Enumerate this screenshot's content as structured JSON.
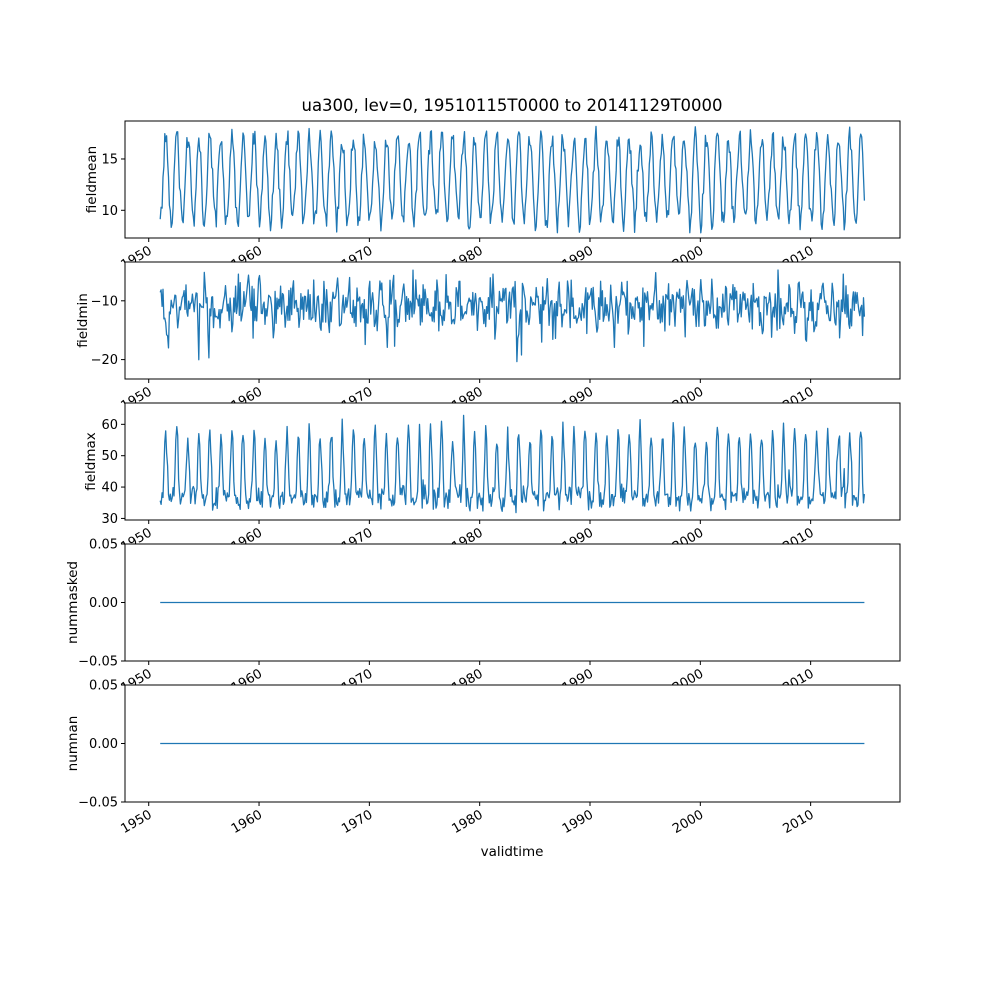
{
  "figure": {
    "background": "#ffffff",
    "line_color": "#1f77b4",
    "frame_color": "#000000"
  },
  "chart_data": {
    "type": "line",
    "title": "ua300, lev=0, 19510115T0000 to 20141129T0000",
    "xlabel": "validtime",
    "legend": "none",
    "grid": false,
    "x_start": 1951.042,
    "x_end": 2014.875,
    "points_per_year": 12,
    "xlim": [
      1947.85,
      2018.1
    ],
    "xticks": [
      1950,
      1960,
      1970,
      1980,
      1990,
      2000,
      2010
    ],
    "xtick_rotation": 30,
    "panels": [
      {
        "name": "fieldmean",
        "ylabel": "fieldmean",
        "ylim": [
          7.3,
          18.7
        ],
        "yticks": [
          [
            10,
            "10"
          ],
          [
            15,
            "15"
          ]
        ],
        "signal": {
          "kind": "sine",
          "base": 13.0,
          "amp": 4.1,
          "noise": 1.1,
          "phase": 0.3,
          "seed": 11
        }
      },
      {
        "name": "fieldmin",
        "ylabel": "fieldmin",
        "ylim": [
          -23.3,
          -3.4
        ],
        "yticks": [
          [
            -20,
            "−20"
          ],
          [
            -10,
            "−10"
          ]
        ],
        "signal": {
          "kind": "noisy",
          "base": -10.8,
          "amp": 1.6,
          "noise": 3.2,
          "spike_prob": 0.035,
          "spike_amp": -6.5,
          "clip_min": -22.6,
          "phase": 0.8,
          "seed": 22
        }
      },
      {
        "name": "fieldmax",
        "ylabel": "fieldmax",
        "ylim": [
          29.5,
          66.8
        ],
        "yticks": [
          [
            30,
            "30"
          ],
          [
            40,
            "40"
          ],
          [
            50,
            "50"
          ],
          [
            60,
            "60"
          ]
        ],
        "signal": {
          "kind": "peaky",
          "base": 36.5,
          "amp": 21.0,
          "noise": 3.4,
          "spike_prob": 0.02,
          "spike_amp": 6.0,
          "clip_max": 65.8,
          "phase": 0.3,
          "seed": 33
        }
      },
      {
        "name": "nummasked",
        "ylabel": "nummasked",
        "ylim": [
          -0.05,
          0.05
        ],
        "yticks": [
          [
            0.05,
            "0.05"
          ],
          [
            0,
            "0.00"
          ],
          [
            -0.05,
            "−0.05"
          ]
        ],
        "signal": {
          "kind": "constant",
          "value": 0
        }
      },
      {
        "name": "numnan",
        "ylabel": "numnan",
        "ylim": [
          -0.05,
          0.05
        ],
        "yticks": [
          [
            0.05,
            "0.05"
          ],
          [
            0,
            "0.00"
          ],
          [
            -0.05,
            "−0.05"
          ]
        ],
        "signal": {
          "kind": "constant",
          "value": 0
        }
      }
    ]
  }
}
